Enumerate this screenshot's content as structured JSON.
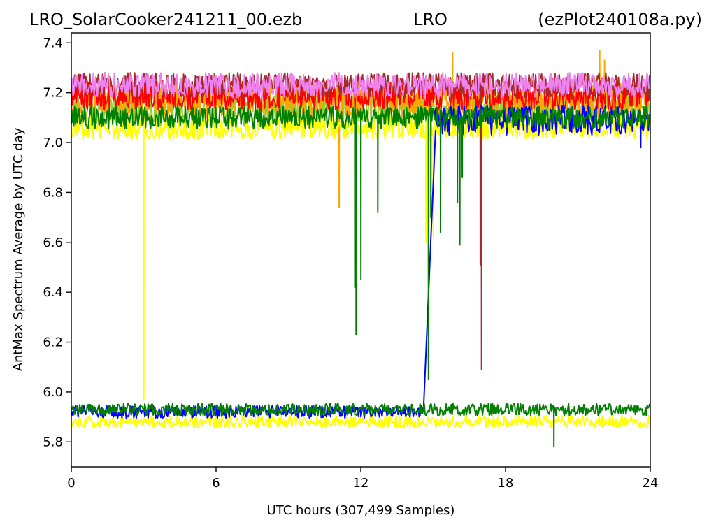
{
  "chart_data": {
    "type": "line",
    "title_parts": [
      "LRO_SolarCooker241211_00.ezb",
      "LRO",
      "(ezPlot240108a.py)"
    ],
    "xlabel": "UTC hours  (307,499 Samples)",
    "ylabel": "AntMax Spectrum Average by UTC day",
    "xlim": [
      0,
      24
    ],
    "ylim": [
      5.7,
      7.44
    ],
    "xticks": [
      0,
      6,
      12,
      18,
      24
    ],
    "xtick_labels": [
      "0",
      "6",
      "12",
      "18",
      "24"
    ],
    "yticks": [
      5.8,
      6.0,
      6.2,
      6.4,
      6.6,
      6.8,
      7.0,
      7.2,
      7.4
    ],
    "ytick_labels": [
      "5.8",
      "6.0",
      "6.2",
      "6.4",
      "6.6",
      "6.8",
      "7.0",
      "7.2",
      "7.4"
    ],
    "grid": false,
    "legend": "none",
    "series": [
      {
        "color": "#9acd32",
        "band_center": 7.13,
        "band_halfwidth": 0.07,
        "x_range": [
          0,
          24
        ]
      },
      {
        "color": "#ffa500",
        "band_center": 7.17,
        "band_halfwidth": 0.07,
        "x_range": [
          0,
          24
        ],
        "spikes": [
          [
            11.1,
            6.74
          ],
          [
            15.8,
            7.36
          ],
          [
            21.9,
            7.37
          ],
          [
            22.1,
            7.33
          ]
        ]
      },
      {
        "color": "#ff0000",
        "band_center": 7.19,
        "band_halfwidth": 0.06,
        "x_range": [
          0,
          24
        ]
      },
      {
        "color": "#ffff00",
        "band_center": 7.06,
        "band_halfwidth": 0.05,
        "x_range": [
          0,
          24
        ],
        "spikes": [
          [
            3.0,
            5.97
          ],
          [
            14.7,
            6.6
          ],
          [
            15.0,
            6.62
          ]
        ]
      },
      {
        "color": "#ffff00",
        "band_center": 5.88,
        "band_halfwidth": 0.025,
        "x_range": [
          0,
          24
        ]
      },
      {
        "color": "#a52a2a",
        "band_center": 7.23,
        "band_halfwidth": 0.05,
        "x_range": [
          0,
          24
        ],
        "spikes": [
          [
            17.0,
            6.09
          ],
          [
            16.95,
            6.51
          ]
        ]
      },
      {
        "color": "#ee82ee",
        "band_center": 7.23,
        "band_halfwidth": 0.05,
        "x_range": [
          0,
          24
        ]
      },
      {
        "color": "#0000ff",
        "band_center": 7.09,
        "band_halfwidth": 0.06,
        "x_range": [
          15.0,
          24
        ],
        "spikes": [
          [
            23.6,
            6.98
          ]
        ]
      },
      {
        "color": "#0000ff",
        "band_center": 5.92,
        "band_halfwidth": 0.025,
        "x_range": [
          0,
          14.6
        ],
        "transition": [
          [
            14.6,
            5.93
          ],
          [
            15.1,
            7.05
          ]
        ]
      },
      {
        "color": "#008000",
        "band_center": 5.93,
        "band_halfwidth": 0.025,
        "x_range": [
          0,
          24
        ],
        "spikes": [
          [
            20.0,
            5.78
          ]
        ]
      },
      {
        "color": "#008000",
        "band_center": 7.1,
        "band_halfwidth": 0.045,
        "x_range": [
          0,
          24
        ],
        "spikes": [
          [
            11.8,
            6.23
          ],
          [
            11.75,
            6.42
          ],
          [
            12.0,
            6.45
          ],
          [
            12.7,
            6.72
          ],
          [
            14.8,
            6.05
          ],
          [
            14.9,
            6.7
          ],
          [
            15.3,
            6.64
          ],
          [
            16.0,
            6.76
          ],
          [
            16.1,
            6.59
          ],
          [
            16.2,
            6.86
          ]
        ]
      }
    ]
  }
}
